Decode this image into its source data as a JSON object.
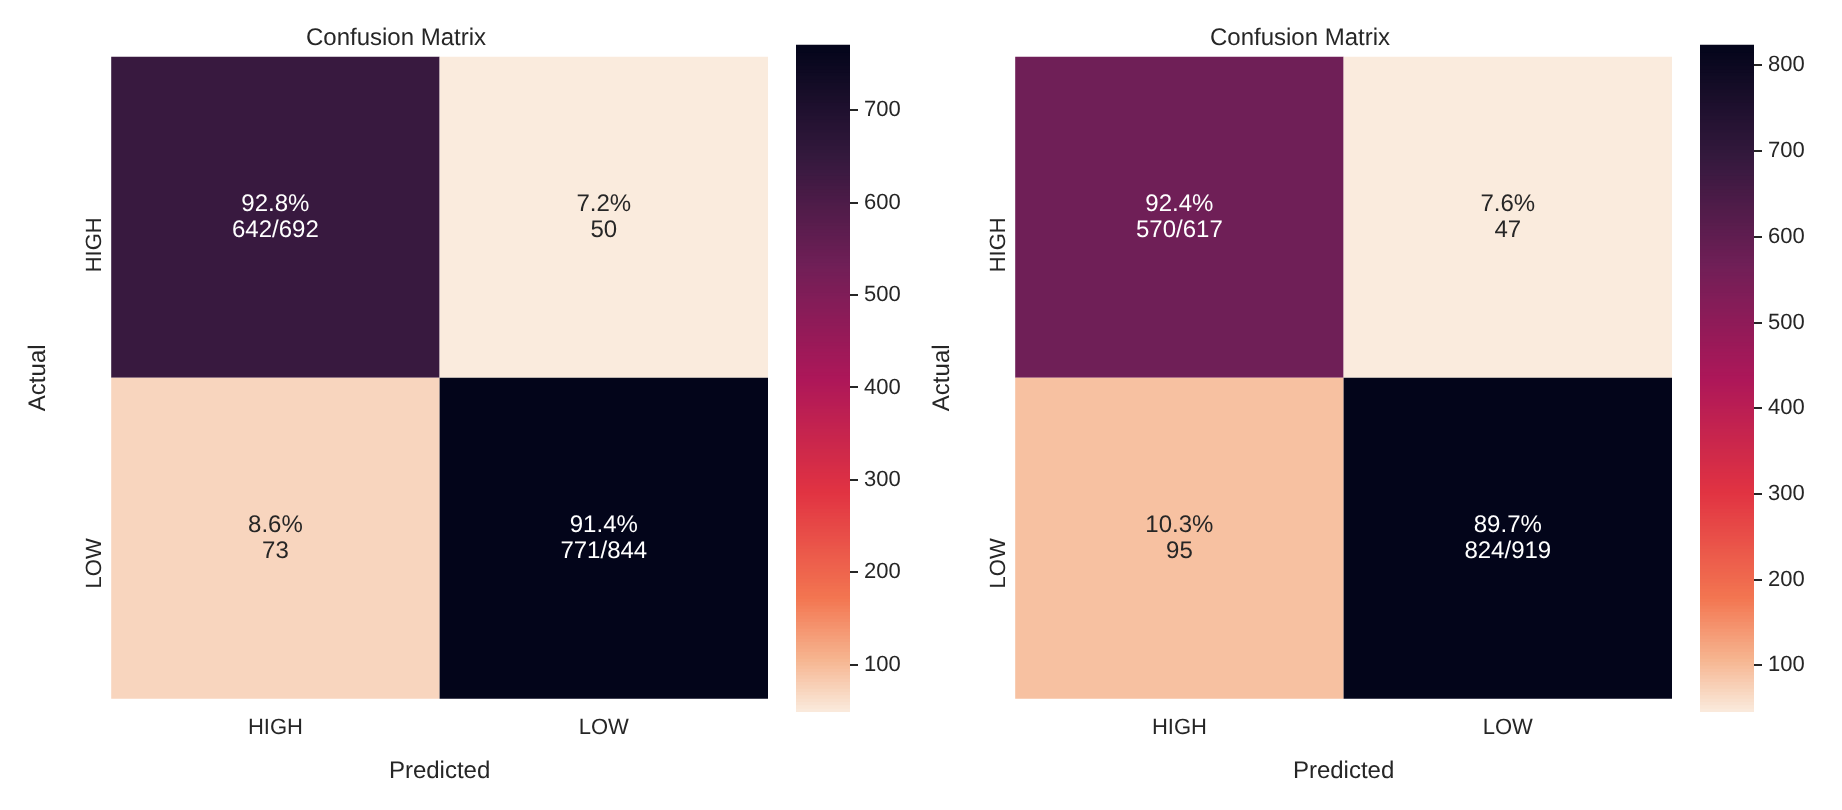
{
  "chart_data": [
    {
      "type": "heatmap",
      "title": "Confusion Matrix",
      "xlabel": "Predicted",
      "ylabel": "Actual",
      "categories": [
        "HIGH",
        "LOW"
      ],
      "y_categories": [
        "HIGH",
        "LOW"
      ],
      "cells": [
        [
          642,
          50
        ],
        [
          73,
          771
        ]
      ],
      "cell_labels": [
        [
          "92.8%\n642/692",
          "7.2%\n50"
        ],
        [
          "8.6%\n73",
          "91.4%\n771/844"
        ]
      ],
      "clim": [
        50,
        771
      ],
      "cticks": [
        100,
        200,
        300,
        400,
        500,
        600,
        700
      ]
    },
    {
      "type": "heatmap",
      "title": "Confusion Matrix",
      "xlabel": "Predicted",
      "ylabel": "Actual",
      "categories": [
        "HIGH",
        "LOW"
      ],
      "y_categories": [
        "HIGH",
        "LOW"
      ],
      "cells": [
        [
          570,
          47
        ],
        [
          95,
          824
        ]
      ],
      "cell_labels": [
        [
          "92.4%\n570/617",
          "7.6%\n47"
        ],
        [
          "10.3%\n95",
          "89.7%\n824/919"
        ]
      ],
      "clim": [
        47,
        824
      ],
      "cticks": [
        100,
        200,
        300,
        400,
        500,
        600,
        700,
        800
      ]
    }
  ]
}
